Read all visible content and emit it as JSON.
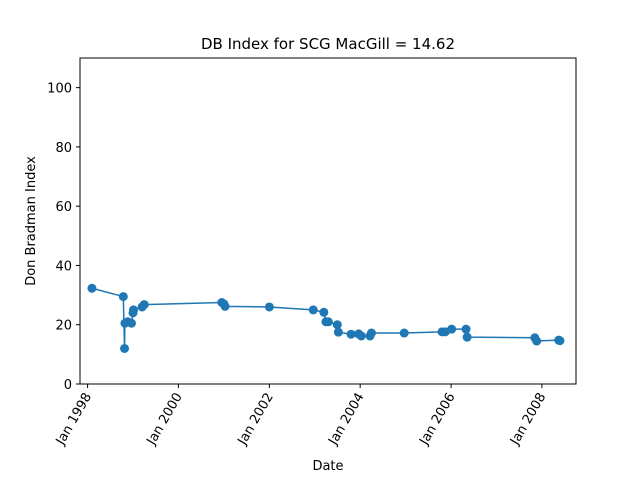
{
  "chart_data": {
    "type": "line",
    "title": "DB Index for SCG MacGill = 14.62",
    "xlabel": "Date",
    "ylabel": "Don Bradman Index",
    "ylim": [
      0,
      110
    ],
    "xlim": [
      "1997-11-01",
      "2008-10-01"
    ],
    "yticks": [
      0,
      20,
      40,
      60,
      80,
      100
    ],
    "xticks": [
      {
        "date": "1998-01-01",
        "label": "Jan 1998"
      },
      {
        "date": "2000-01-01",
        "label": "Jan 2000"
      },
      {
        "date": "2002-01-01",
        "label": "Jan 2002"
      },
      {
        "date": "2004-01-01",
        "label": "Jan 2004"
      },
      {
        "date": "2006-01-01",
        "label": "Jan 2006"
      },
      {
        "date": "2008-01-01",
        "label": "Jan 2008"
      }
    ],
    "grid": false,
    "marker": "circle",
    "color": "#1f77b4",
    "series": [
      {
        "name": "",
        "x": [
          "1998-02-05",
          "1998-10-15",
          "1998-10-25",
          "1998-10-28",
          "1998-11-20",
          "1998-12-20",
          "1999-01-01",
          "1999-01-05",
          "1999-03-15",
          "1999-04-01",
          "2000-12-15",
          "2001-01-01",
          "2001-01-10",
          "2002-01-01",
          "2002-12-20",
          "2003-03-15",
          "2003-04-01",
          "2003-04-20",
          "2003-07-01",
          "2003-07-10",
          "2003-10-20",
          "2003-12-20",
          "2004-01-10",
          "2004-03-20",
          "2004-04-01",
          "2004-12-20",
          "2005-10-20",
          "2005-11-15",
          "2006-01-05",
          "2006-05-01",
          "2006-05-10",
          "2007-11-05",
          "2007-11-20",
          "2008-05-15",
          "2008-05-25"
        ],
        "y": [
          32.3,
          29.5,
          12.0,
          20.5,
          21.0,
          20.5,
          24.0,
          25.0,
          26.0,
          26.8,
          27.5,
          27.0,
          26.2,
          26.0,
          25.0,
          24.2,
          21.0,
          21.0,
          20.0,
          17.5,
          16.8,
          16.9,
          16.2,
          16.2,
          17.2,
          17.2,
          17.6,
          17.6,
          18.5,
          18.5,
          15.8,
          15.6,
          14.5,
          14.8,
          14.62
        ]
      }
    ]
  }
}
